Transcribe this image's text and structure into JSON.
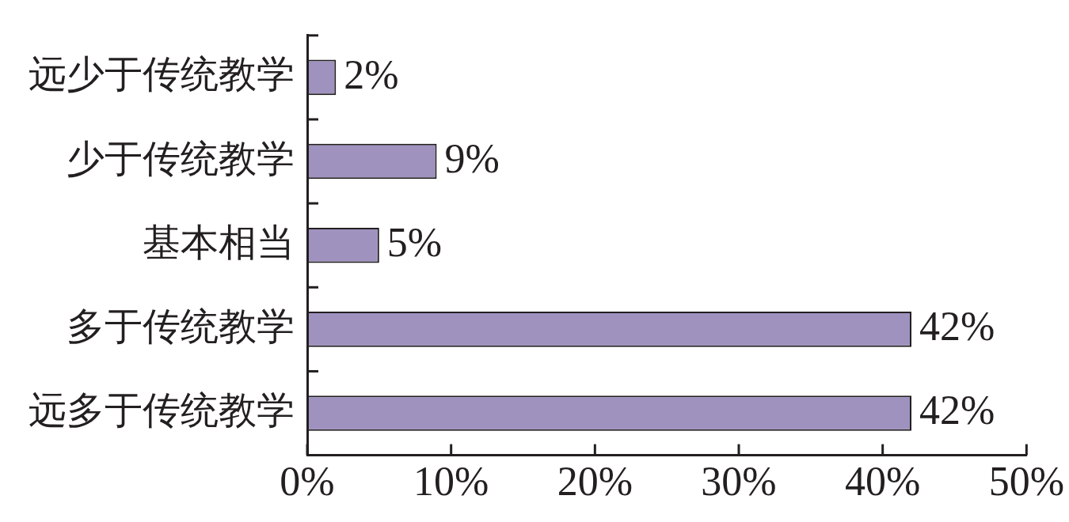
{
  "chart_data": {
    "type": "bar",
    "orientation": "horizontal",
    "categories": [
      "远少于传统教学",
      "少于传统教学",
      "基本相当",
      "多于传统教学",
      "远多于传统教学"
    ],
    "values": [
      2,
      9,
      5,
      42,
      42
    ],
    "value_labels": [
      "2%",
      "9%",
      "5%",
      "42%",
      "42%"
    ],
    "color": "#9f92bf",
    "xlim": [
      0,
      50
    ],
    "xticks": [
      {
        "value": 0,
        "label": "0%"
      },
      {
        "value": 10,
        "label": "10%"
      },
      {
        "value": 20,
        "label": "20%"
      },
      {
        "value": 30,
        "label": "30%"
      },
      {
        "value": 40,
        "label": "40%"
      },
      {
        "value": 50,
        "label": "50%"
      }
    ],
    "grid": false,
    "legend": false
  }
}
